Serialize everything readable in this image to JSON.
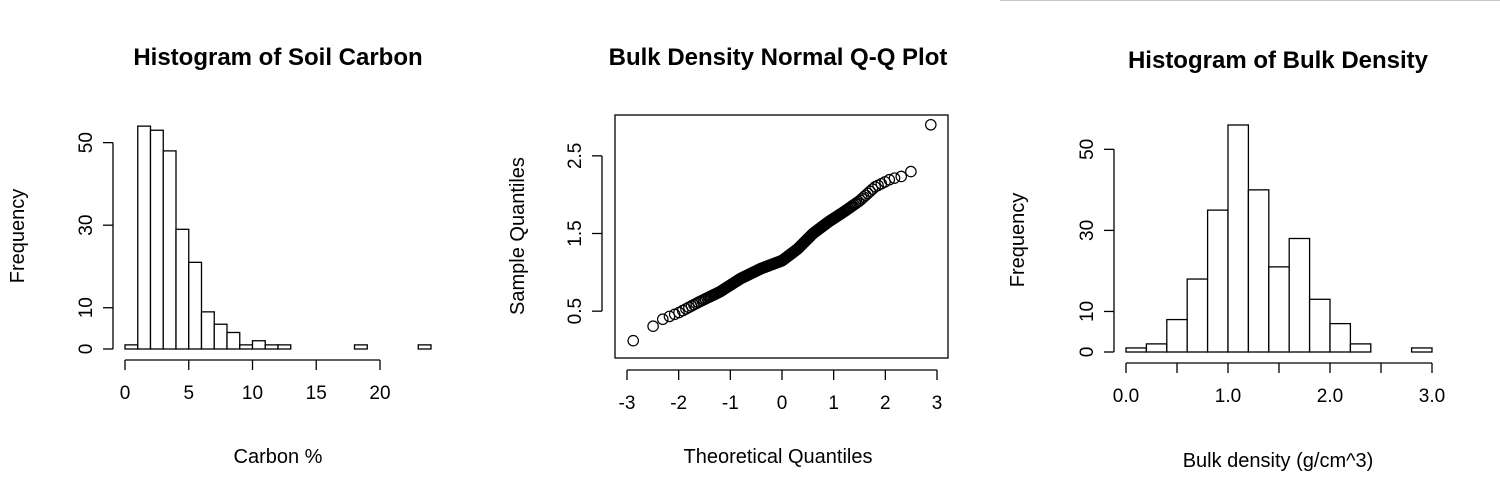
{
  "chart_data": [
    {
      "type": "bar",
      "title": "Histogram of Soil Carbon",
      "xlabel": "Carbon %",
      "ylabel": "Frequency",
      "bin_edges": [
        0,
        1,
        2,
        3,
        4,
        5,
        6,
        7,
        8,
        9,
        10,
        11,
        12,
        13,
        14,
        15,
        16,
        17,
        18,
        19,
        20,
        21,
        22,
        23,
        24
      ],
      "values": [
        1,
        54,
        53,
        48,
        29,
        21,
        9,
        6,
        4,
        1,
        2,
        1,
        1,
        0,
        0,
        0,
        0,
        0,
        1,
        0,
        0,
        0,
        0,
        1
      ],
      "xlim": [
        0,
        24
      ],
      "ylim": [
        0,
        55
      ],
      "xticks": [
        0,
        5,
        10,
        15,
        20
      ],
      "yticks": [
        0,
        10,
        30,
        50
      ],
      "grid": false
    },
    {
      "type": "scatter",
      "title": "Bulk Density Normal Q-Q Plot",
      "xlabel": "Theoretical Quantiles",
      "ylabel": "Sample Quantiles",
      "n_points": 238,
      "curve_x": [
        -2.88,
        -2.55,
        -2.3,
        -2.0,
        -1.6,
        -1.2,
        -0.8,
        -0.4,
        0.0,
        0.3,
        0.6,
        0.9,
        1.2,
        1.5,
        1.8,
        2.1,
        2.4,
        2.5
      ],
      "curve_y": [
        0.12,
        0.28,
        0.4,
        0.48,
        0.62,
        0.75,
        0.92,
        1.05,
        1.15,
        1.3,
        1.5,
        1.65,
        1.78,
        1.92,
        2.1,
        2.2,
        2.25,
        2.3
      ],
      "outliers": [
        {
          "x": -2.88,
          "y": 0.12
        },
        {
          "x": 2.88,
          "y": 2.9
        }
      ],
      "xlim": [
        -3,
        3
      ],
      "ylim": [
        0.0,
        3.0
      ],
      "xticks": [
        -3,
        -2,
        -1,
        0,
        1,
        2,
        3
      ],
      "yticks": [
        0.5,
        1.5,
        2.5
      ],
      "grid": false
    },
    {
      "type": "bar",
      "title": "Histogram of Bulk Density",
      "xlabel": "Bulk density (g/cm^3)",
      "ylabel": "Frequency",
      "bin_edges": [
        0.0,
        0.2,
        0.4,
        0.6,
        0.8,
        1.0,
        1.2,
        1.4,
        1.6,
        1.8,
        2.0,
        2.2,
        2.4,
        2.6,
        2.8,
        3.0
      ],
      "values": [
        1,
        2,
        8,
        18,
        35,
        56,
        40,
        21,
        28,
        13,
        7,
        2,
        0,
        0,
        1
      ],
      "xlim": [
        0,
        3.0
      ],
      "ylim": [
        0,
        56
      ],
      "xticks": [
        0.0,
        0.5,
        1.0,
        1.5,
        2.0,
        2.5,
        3.0
      ],
      "xtick_labels": [
        "0.0",
        "",
        "1.0",
        "",
        "2.0",
        "",
        "3.0"
      ],
      "yticks": [
        0,
        10,
        30,
        50
      ],
      "grid": false
    }
  ]
}
